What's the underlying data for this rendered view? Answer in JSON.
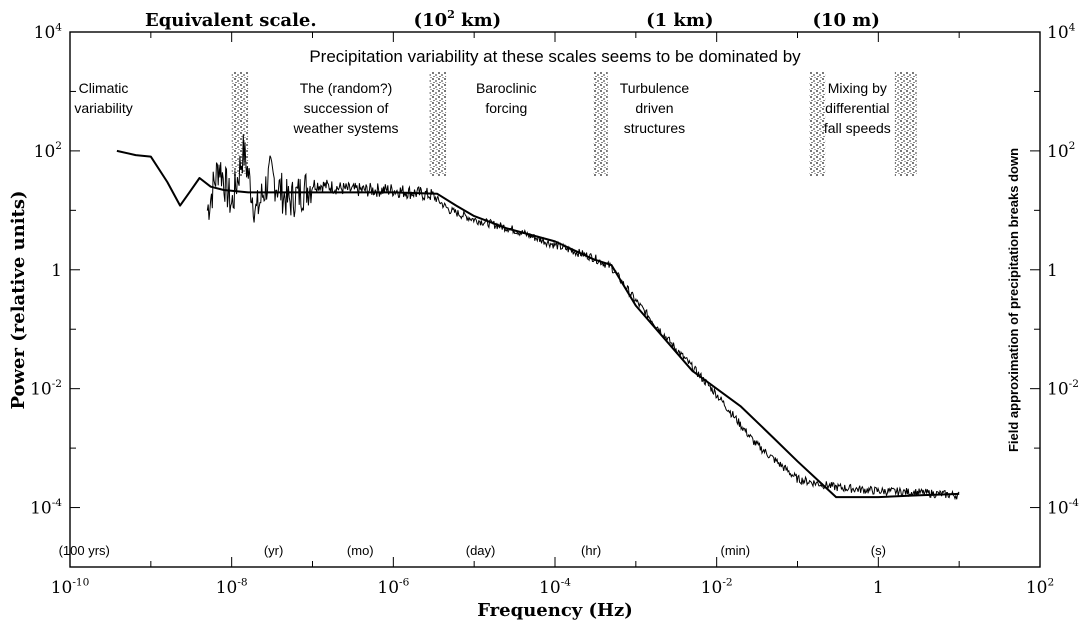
{
  "chart_data": {
    "type": "line",
    "title": "Precipitation variability at these scales seems to be dominated by",
    "xlabel": "Frequency (Hz)",
    "ylabel": "Power (relative units)",
    "right_axis_label": "Field approximation of precipitation breaks down",
    "x_scale": "log",
    "y_scale": "log",
    "xlim": [
      1e-10,
      100
    ],
    "ylim": [
      1e-05,
      10000
    ],
    "grid": false,
    "legend": "none",
    "x_ticks": [
      {
        "value": 1e-10,
        "base": "10",
        "exp": "-10"
      },
      {
        "value": 1e-08,
        "base": "10",
        "exp": "-8"
      },
      {
        "value": 1e-06,
        "base": "10",
        "exp": "-6"
      },
      {
        "value": 0.0001,
        "base": "10",
        "exp": "-4"
      },
      {
        "value": 0.01,
        "base": "10",
        "exp": "-2"
      },
      {
        "value": 1,
        "base": "1",
        "exp": ""
      },
      {
        "value": 100,
        "base": "10",
        "exp": "2"
      }
    ],
    "y_ticks_left": [
      {
        "value": 10000,
        "base": "10",
        "exp": "4"
      },
      {
        "value": 100,
        "base": "10",
        "exp": "2"
      },
      {
        "value": 1,
        "base": "1",
        "exp": ""
      },
      {
        "value": 0.01,
        "base": "10",
        "exp": "-2"
      },
      {
        "value": 0.0001,
        "base": "10",
        "exp": "-4"
      }
    ],
    "y_ticks_right": [
      {
        "value": 10000,
        "base": "10",
        "exp": "4"
      },
      {
        "value": 100,
        "base": "10",
        "exp": "2"
      },
      {
        "value": 1,
        "base": "1",
        "exp": ""
      },
      {
        "value": 0.01,
        "base": "10",
        "exp": "-2"
      },
      {
        "value": 0.0001,
        "base": "10",
        "exp": "-4"
      }
    ],
    "equivalent_scale": {
      "label": "Equivalent scale.",
      "marks": [
        {
          "x": 6.2e-06,
          "base": "(10",
          "exp": "2",
          "tail": " km)"
        },
        {
          "x": 0.0035,
          "base": "(1 km)",
          "exp": "",
          "tail": ""
        },
        {
          "x": 0.4,
          "base": "(10 m)",
          "exp": "",
          "tail": ""
        }
      ]
    },
    "time_scale_labels": [
      {
        "x": 1.5e-10,
        "text": "(100 yrs)"
      },
      {
        "x": 3.3e-08,
        "text": "(yr)"
      },
      {
        "x": 3.9e-07,
        "text": "(mo)"
      },
      {
        "x": 1.2e-05,
        "text": "(day)"
      },
      {
        "x": 0.00028,
        "text": "(hr)"
      },
      {
        "x": 0.017,
        "text": "(min)"
      },
      {
        "x": 1,
        "text": "(s)"
      }
    ],
    "regimes": [
      {
        "x": 2.6e-10,
        "lines": [
          "Climatic",
          "variability"
        ]
      },
      {
        "x": 2.6e-07,
        "lines": [
          "The (random?)",
          "succession of",
          "weather systems"
        ]
      },
      {
        "x": 2.5e-05,
        "lines": [
          "Baroclinic",
          "forcing"
        ]
      },
      {
        "x": 0.0017,
        "lines": [
          "Turbulence",
          "driven",
          "structures"
        ]
      },
      {
        "x": 0.55,
        "lines": [
          "Mixing by",
          "differential",
          "fall speeds"
        ]
      }
    ],
    "transition_bands": [
      {
        "x_from": 1e-08,
        "x_to": 1.6e-08
      },
      {
        "x_from": 2.8e-06,
        "x_to": 4.5e-06
      },
      {
        "x_from": 0.0003,
        "x_to": 0.00045
      },
      {
        "x_from": 0.14,
        "x_to": 0.22
      },
      {
        "x_from": 1.6,
        "x_to": 3
      }
    ],
    "series": [
      {
        "style": "smooth-thick",
        "x": [
          3.8e-10,
          6.5e-10,
          1e-09,
          1.6e-09,
          2.3e-09,
          3e-09,
          4e-09,
          5.5e-09,
          8e-09,
          1.6e-08,
          1e-07,
          1e-06,
          3.5e-06,
          6e-06,
          1e-05,
          2.5e-05,
          0.0001,
          0.0003,
          0.0005,
          0.001,
          0.005,
          0.02,
          0.05,
          0.1,
          0.2,
          0.3,
          0.5,
          1,
          3,
          10
        ],
        "y": [
          100,
          85,
          80,
          30,
          12,
          20,
          35,
          25,
          22,
          20,
          20,
          20,
          19,
          12,
          8,
          5,
          3,
          1.5,
          1.2,
          0.25,
          0.02,
          0.005,
          0.0015,
          0.0006,
          0.00025,
          0.00015,
          0.00015,
          0.00015,
          0.00016,
          0.00017
        ]
      },
      {
        "style": "noisy-measured",
        "x": [
          5e-09,
          7e-09,
          1e-08,
          1.4e-08,
          2e-08,
          3e-08,
          5e-08,
          1e-07,
          3e-07,
          1e-06,
          3e-06,
          5e-06,
          1e-05,
          3e-05,
          0.0001,
          0.0003,
          0.0005,
          0.001,
          0.003,
          0.01,
          0.03,
          0.1,
          0.3,
          1,
          3,
          10
        ],
        "y": [
          10,
          60,
          12,
          100,
          9,
          40,
          14,
          28,
          22,
          22,
          18,
          10,
          7,
          4.8,
          2.6,
          1.6,
          1.1,
          0.3,
          0.05,
          0.008,
          0.0012,
          0.0003,
          0.00022,
          0.00019,
          0.00018,
          0.00016
        ]
      }
    ]
  }
}
